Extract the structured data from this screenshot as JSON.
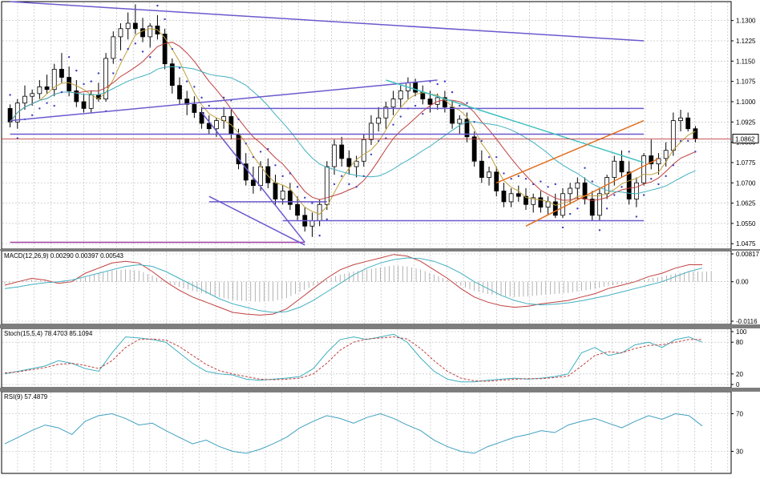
{
  "chart_data": [
    {
      "type": "candlestick",
      "pane": "price",
      "y_ticks": [
        "1.1300",
        "1.1225",
        "1.1150",
        "1.1075",
        "1.1000",
        "1.0925",
        "1.0850",
        "1.0775",
        "1.0700",
        "1.0625",
        "1.0550",
        "1.0475"
      ],
      "ylim": [
        1.0455,
        1.137
      ],
      "current_price": "1.0862",
      "grid": true,
      "candles": [
        [
          1.0975,
          1.099,
          1.0905,
          1.0925
        ],
        [
          1.0925,
          1.101,
          1.09,
          1.0995
        ],
        [
          1.0995,
          1.106,
          1.097,
          1.102
        ],
        [
          1.102,
          1.1045,
          1.0985,
          1.103
        ],
        [
          1.103,
          1.108,
          1.101,
          1.1055
        ],
        [
          1.1055,
          1.11,
          1.103,
          1.1045
        ],
        [
          1.1045,
          1.114,
          1.102,
          1.112
        ],
        [
          1.112,
          1.118,
          1.107,
          1.109
        ],
        [
          1.109,
          1.113,
          1.102,
          1.104
        ],
        [
          1.104,
          1.108,
          1.098,
          1.1
        ],
        [
          1.1,
          1.103,
          1.096,
          1.0975
        ],
        [
          1.0975,
          1.104,
          1.096,
          1.1025
        ],
        [
          1.1025,
          1.107,
          1.1,
          1.101
        ],
        [
          1.101,
          1.118,
          1.1,
          1.116
        ],
        [
          1.116,
          1.126,
          1.114,
          1.124
        ],
        [
          1.124,
          1.129,
          1.119,
          1.127
        ],
        [
          1.127,
          1.133,
          1.123,
          1.129
        ],
        [
          1.129,
          1.136,
          1.125,
          1.127
        ],
        [
          1.127,
          1.131,
          1.122,
          1.124
        ],
        [
          1.124,
          1.129,
          1.12,
          1.128
        ],
        [
          1.128,
          1.132,
          1.123,
          1.125
        ],
        [
          1.125,
          1.127,
          1.112,
          1.114
        ],
        [
          1.114,
          1.116,
          1.103,
          1.106
        ],
        [
          1.106,
          1.109,
          1.099,
          1.101
        ],
        [
          1.101,
          1.104,
          1.095,
          1.099
        ],
        [
          1.099,
          1.102,
          1.094,
          1.096
        ],
        [
          1.096,
          1.098,
          1.09,
          1.092
        ],
        [
          1.092,
          1.095,
          1.088,
          1.09
        ],
        [
          1.09,
          1.094,
          1.087,
          1.093
        ],
        [
          1.093,
          1.098,
          1.09,
          1.0945
        ],
        [
          1.0945,
          1.097,
          1.086,
          1.088
        ],
        [
          1.088,
          1.09,
          1.075,
          1.077
        ],
        [
          1.077,
          1.081,
          1.069,
          1.071
        ],
        [
          1.071,
          1.076,
          1.066,
          1.069
        ],
        [
          1.069,
          1.078,
          1.067,
          1.076
        ],
        [
          1.076,
          1.079,
          1.068,
          1.07
        ],
        [
          1.07,
          1.073,
          1.062,
          1.064
        ],
        [
          1.064,
          1.069,
          1.062,
          1.067
        ],
        [
          1.067,
          1.07,
          1.06,
          1.062
        ],
        [
          1.062,
          1.065,
          1.056,
          1.058
        ],
        [
          1.058,
          1.061,
          1.052,
          1.054
        ],
        [
          1.054,
          1.059,
          1.05,
          1.056
        ],
        [
          1.056,
          1.064,
          1.054,
          1.062
        ],
        [
          1.062,
          1.078,
          1.06,
          1.076
        ],
        [
          1.076,
          1.086,
          1.073,
          1.084
        ],
        [
          1.084,
          1.087,
          1.076,
          1.079
        ],
        [
          1.079,
          1.082,
          1.073,
          1.076
        ],
        [
          1.076,
          1.08,
          1.072,
          1.078
        ],
        [
          1.078,
          1.088,
          1.076,
          1.086
        ],
        [
          1.086,
          1.095,
          1.084,
          1.092
        ],
        [
          1.092,
          1.098,
          1.089,
          1.094
        ],
        [
          1.094,
          1.1,
          1.09,
          1.098
        ],
        [
          1.098,
          1.104,
          1.095,
          1.101
        ],
        [
          1.101,
          1.106,
          1.098,
          1.104
        ],
        [
          1.104,
          1.109,
          1.101,
          1.107
        ],
        [
          1.107,
          1.1085,
          1.102,
          1.1035
        ],
        [
          1.1035,
          1.106,
          1.099,
          1.101
        ],
        [
          1.101,
          1.104,
          1.096,
          1.099
        ],
        [
          1.099,
          1.103,
          1.097,
          1.1015
        ],
        [
          1.1015,
          1.104,
          1.096,
          1.098
        ],
        [
          1.098,
          1.1,
          1.09,
          1.092
        ],
        [
          1.092,
          1.095,
          1.088,
          1.0935
        ],
        [
          1.0935,
          1.096,
          1.085,
          1.087
        ],
        [
          1.087,
          1.089,
          1.076,
          1.078
        ],
        [
          1.078,
          1.082,
          1.07,
          1.072
        ],
        [
          1.072,
          1.076,
          1.069,
          1.074
        ],
        [
          1.074,
          1.076,
          1.065,
          1.067
        ],
        [
          1.067,
          1.07,
          1.061,
          1.063
        ],
        [
          1.063,
          1.068,
          1.061,
          1.066
        ],
        [
          1.066,
          1.069,
          1.063,
          1.065
        ],
        [
          1.065,
          1.068,
          1.06,
          1.062
        ],
        [
          1.062,
          1.066,
          1.059,
          1.0645
        ],
        [
          1.0645,
          1.067,
          1.059,
          1.061
        ],
        [
          1.061,
          1.065,
          1.058,
          1.063
        ],
        [
          1.063,
          1.066,
          1.057,
          1.058
        ],
        [
          1.058,
          1.068,
          1.057,
          1.066
        ],
        [
          1.066,
          1.07,
          1.062,
          1.068
        ],
        [
          1.068,
          1.072,
          1.064,
          1.07
        ],
        [
          1.07,
          1.072,
          1.062,
          1.064
        ],
        [
          1.064,
          1.067,
          1.056,
          1.058
        ],
        [
          1.058,
          1.068,
          1.056,
          1.066
        ],
        [
          1.066,
          1.073,
          1.064,
          1.072
        ],
        [
          1.072,
          1.08,
          1.069,
          1.078
        ],
        [
          1.078,
          1.082,
          1.072,
          1.074
        ],
        [
          1.074,
          1.078,
          1.062,
          1.064
        ],
        [
          1.064,
          1.072,
          1.061,
          1.07
        ],
        [
          1.07,
          1.081,
          1.069,
          1.08
        ],
        [
          1.08,
          1.086,
          1.075,
          1.077
        ],
        [
          1.077,
          1.081,
          1.073,
          1.079
        ],
        [
          1.079,
          1.085,
          1.076,
          1.082
        ],
        [
          1.082,
          1.096,
          1.08,
          1.093
        ],
        [
          1.093,
          1.097,
          1.089,
          1.094
        ],
        [
          1.094,
          1.096,
          1.089,
          1.09
        ],
        [
          1.09,
          1.091,
          1.085,
          1.0862
        ]
      ],
      "ma_series": [
        {
          "name": "",
          "color": "#c0a040"
        },
        {
          "name": "",
          "color": "#c04040"
        },
        {
          "name": "",
          "color": "#40b0c0"
        }
      ]
    },
    {
      "type": "line",
      "pane": "macd",
      "label": "MACD(12,26,9) 0.00290 0.00397 0.00543",
      "y_ticks": [
        "0.00817",
        "0.00",
        "-0.0116"
      ],
      "ylim": [
        -0.0116,
        0.00817
      ],
      "series": [
        {
          "name": "",
          "color": "#c04040",
          "values": [
            -0.001,
            0.0,
            0.001,
            0.0005,
            -0.0005,
            0.0,
            0.0025,
            0.004,
            0.0055,
            0.006,
            0.0055,
            0.003,
            0.0,
            -0.0025,
            -0.0045,
            -0.006,
            -0.0075,
            -0.009,
            -0.0095,
            -0.0098,
            -0.0095,
            -0.008,
            -0.005,
            -0.002,
            0.001,
            0.0035,
            0.005,
            0.006,
            0.007,
            0.008,
            0.0075,
            0.006,
            0.0035,
            0.001,
            -0.002,
            -0.0045,
            -0.006,
            -0.007,
            -0.0075,
            -0.0072,
            -0.0065,
            -0.006,
            -0.0055,
            -0.0045,
            -0.0035,
            -0.002,
            -0.001,
            0.0,
            0.0015,
            0.0025,
            0.004,
            0.005,
            0.005
          ]
        },
        {
          "name": "",
          "color": "#40b0c0",
          "values": [
            -0.002,
            -0.0015,
            -0.0008,
            -0.0003,
            0.0,
            0.0005,
            0.0015,
            0.0025,
            0.0035,
            0.0045,
            0.005,
            0.0045,
            0.003,
            0.001,
            -0.001,
            -0.003,
            -0.005,
            -0.0065,
            -0.0075,
            -0.0085,
            -0.009,
            -0.0088,
            -0.0075,
            -0.0055,
            -0.003,
            -0.0005,
            0.002,
            0.004,
            0.0055,
            0.0065,
            0.007,
            0.0068,
            0.006,
            0.0045,
            0.0025,
            0.0,
            -0.002,
            -0.004,
            -0.0055,
            -0.0065,
            -0.0068,
            -0.0066,
            -0.0062,
            -0.0056,
            -0.0048,
            -0.004,
            -0.003,
            -0.002,
            -0.001,
            0.0,
            0.0015,
            0.003,
            0.004
          ]
        }
      ]
    },
    {
      "type": "line",
      "pane": "stoch",
      "label": "Stoch(15,5,4) 78.4703 85.1094",
      "y_ticks": [
        "100",
        "80",
        "20",
        "0"
      ],
      "ylim": [
        0,
        100
      ],
      "series": [
        {
          "name": "",
          "color": "#40b0c0",
          "values": [
            20,
            25,
            30,
            35,
            45,
            40,
            30,
            25,
            60,
            90,
            88,
            85,
            80,
            60,
            40,
            25,
            20,
            18,
            10,
            8,
            10,
            12,
            15,
            30,
            60,
            85,
            90,
            85,
            90,
            95,
            80,
            50,
            25,
            10,
            5,
            5,
            8,
            10,
            12,
            10,
            12,
            15,
            20,
            60,
            70,
            55,
            60,
            75,
            80,
            70,
            85,
            90,
            80
          ]
        },
        {
          "name": "",
          "color": "#c04040",
          "values": [
            22,
            24,
            28,
            32,
            38,
            40,
            36,
            30,
            45,
            70,
            85,
            86,
            84,
            72,
            55,
            38,
            26,
            20,
            15,
            10,
            9,
            10,
            12,
            20,
            40,
            65,
            80,
            86,
            88,
            90,
            86,
            68,
            45,
            25,
            12,
            7,
            6,
            8,
            10,
            11,
            11,
            13,
            16,
            35,
            55,
            62,
            60,
            68,
            74,
            75,
            80,
            85,
            85
          ]
        }
      ]
    },
    {
      "type": "line",
      "pane": "rsi",
      "label": "RSI(9) 57.4879",
      "y_ticks": [
        "70",
        "30"
      ],
      "ylim": [
        10,
        90
      ],
      "series": [
        {
          "name": "",
          "color": "#40a0c0",
          "values": [
            38,
            45,
            52,
            58,
            55,
            48,
            62,
            68,
            70,
            65,
            58,
            60,
            52,
            45,
            38,
            42,
            35,
            30,
            28,
            32,
            38,
            45,
            55,
            62,
            68,
            65,
            60,
            66,
            70,
            65,
            58,
            52,
            42,
            35,
            30,
            28,
            35,
            40,
            45,
            48,
            52,
            50,
            58,
            62,
            65,
            60,
            55,
            62,
            68,
            64,
            70,
            68,
            57
          ]
        }
      ]
    }
  ],
  "labels": {
    "macd": "MACD(12,26,9) 0.00290 0.00397 0.00543",
    "stoch": "Stoch(15,5,4) 78.4703 85.1094",
    "rsi": "RSI(9) 57.4879",
    "price_tag": "1.0862"
  }
}
